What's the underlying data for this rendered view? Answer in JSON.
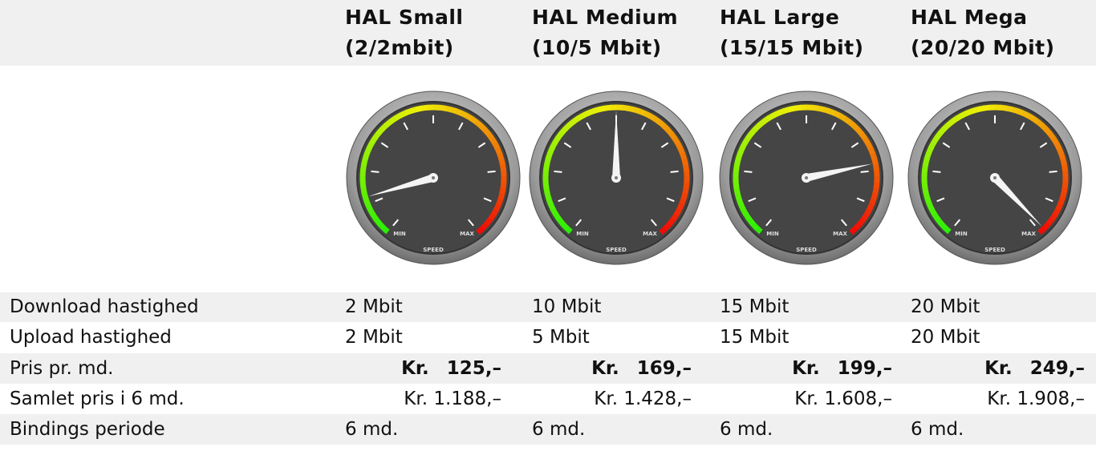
{
  "table": {
    "header": [
      {
        "name": "HAL Small",
        "speed": "(2/2mbit)"
      },
      {
        "name": "HAL Medium",
        "speed": "(10/5 Mbit)"
      },
      {
        "name": "HAL Large",
        "speed": "(15/15 Mbit)"
      },
      {
        "name": "HAL Mega",
        "speed": "(20/20 Mbit)"
      }
    ],
    "gauge": {
      "min": "MIN",
      "max": "MAX",
      "label": "SPEED"
    },
    "rows": [
      [
        "Download hastighed",
        "2 Mbit",
        "10 Mbit",
        "15 Mbit",
        "20 Mbit"
      ],
      [
        "Upload hastighed",
        "2 Mbit",
        "5 Mbit",
        "15 Mbit",
        "20 Mbit"
      ],
      [
        "Pris pr. md.",
        "Kr. 125,–",
        "Kr. 169,–",
        "Kr. 199,–",
        "Kr. 249,–"
      ],
      [
        "Samlet pris i 6 md.",
        "Kr. 1.188,–",
        "Kr. 1.428,–",
        "Kr. 1.608,–",
        "Kr. 1.908,–"
      ],
      [
        "Bindings periode",
        "6 md.",
        "6 md.",
        "6 md.",
        "6 md."
      ]
    ]
  }
}
